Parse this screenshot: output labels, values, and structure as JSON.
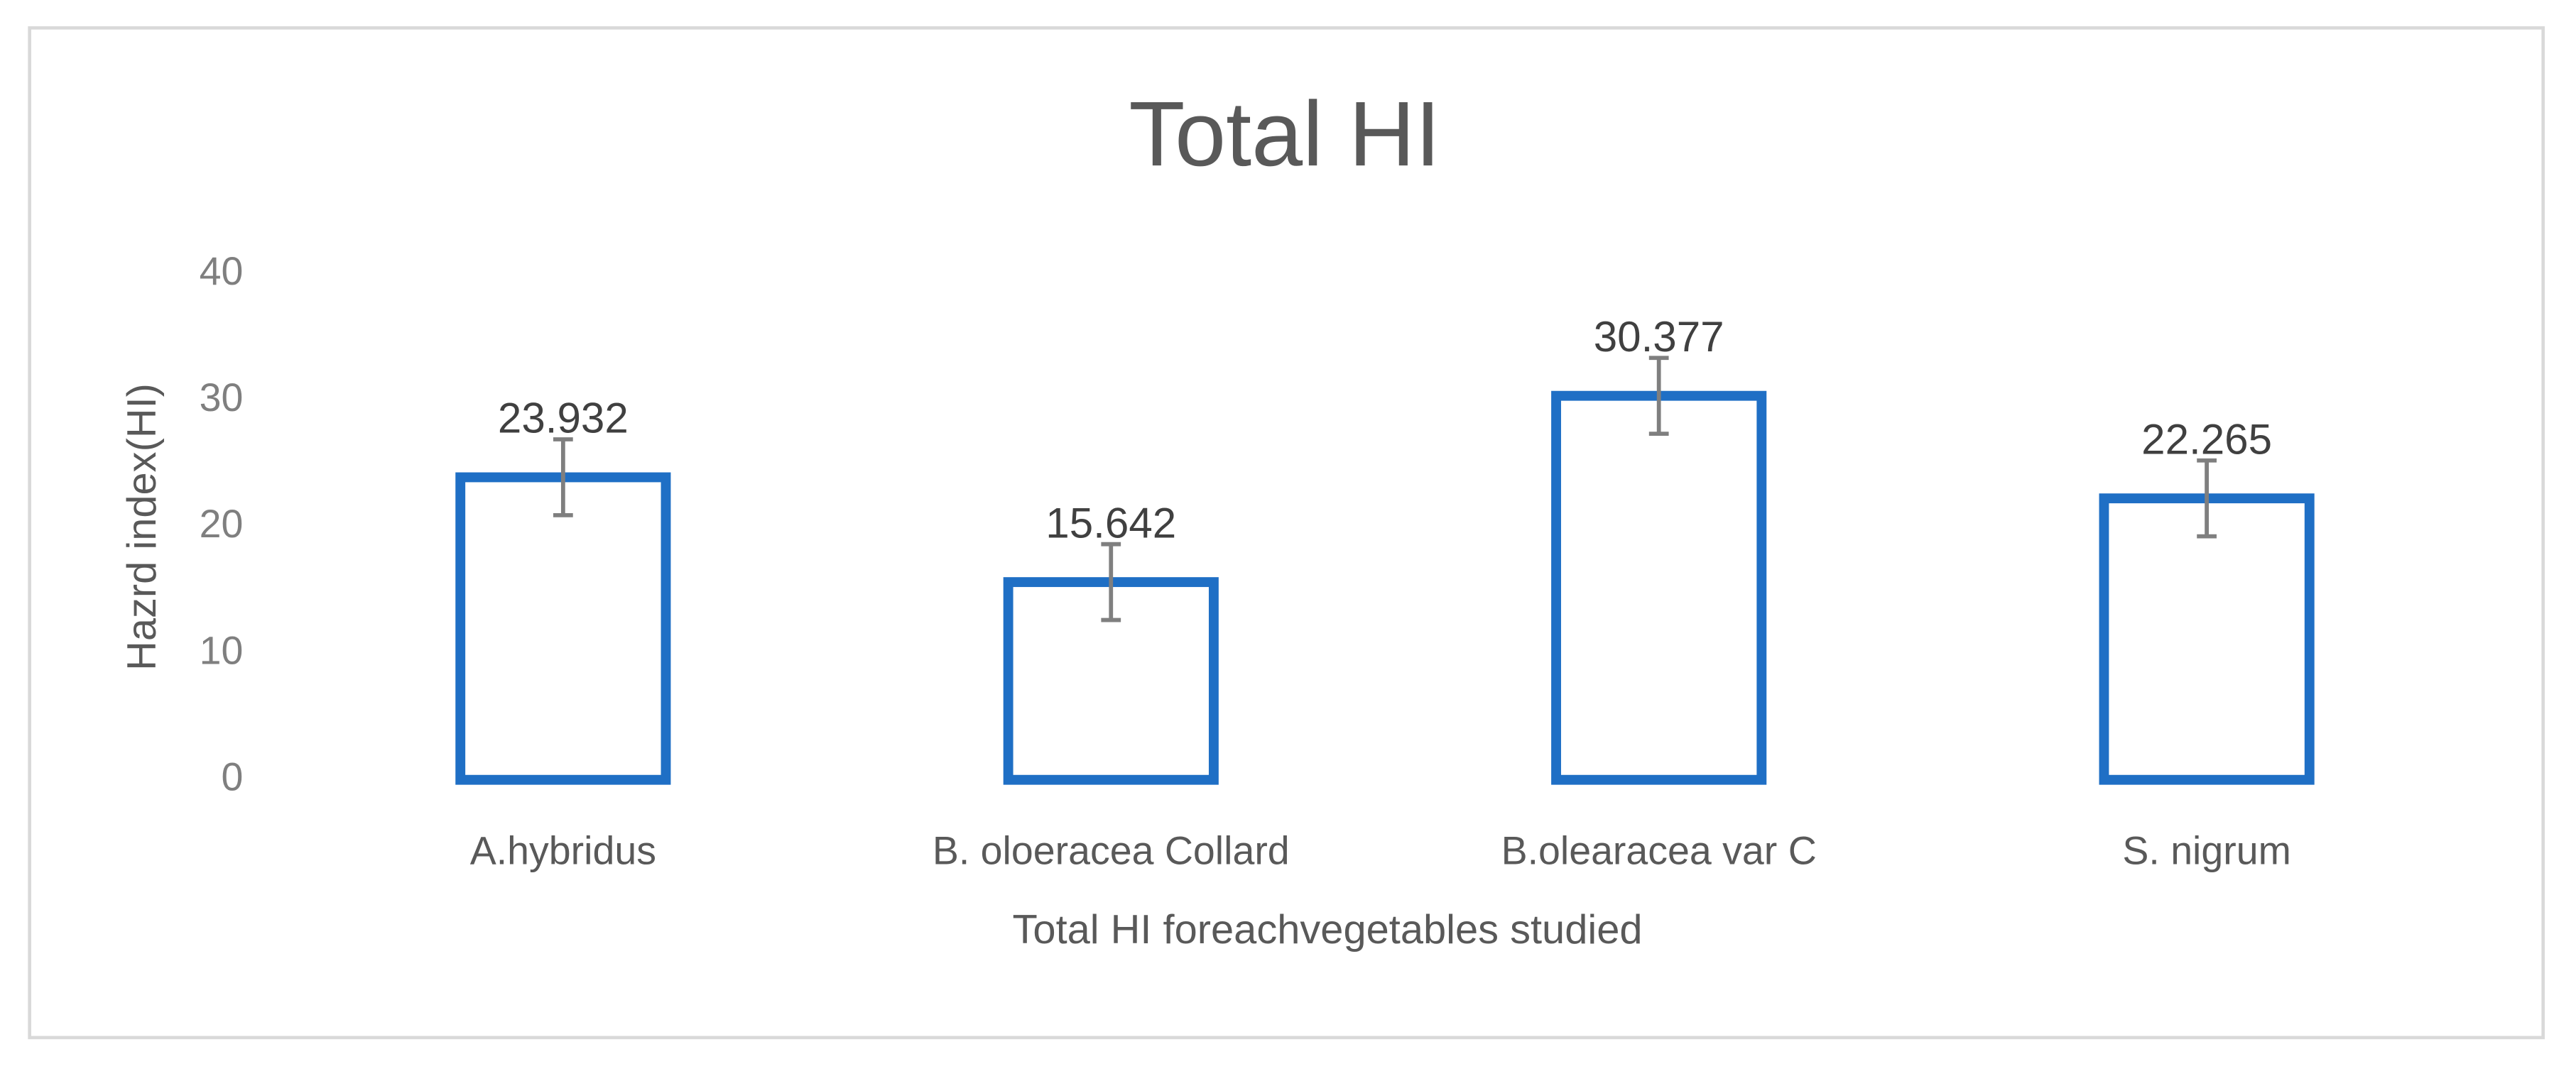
{
  "chart_data": {
    "type": "bar",
    "title": "Total HI",
    "x_label": "Total HI foreachvegetables studied",
    "y_label": "Hazrd index(HI)",
    "categories": [
      "A.hybridus",
      "B. oloeracea Collard",
      "B.olearacea var C",
      "S. nigrum"
    ],
    "values": [
      23.932,
      15.642,
      30.377,
      22.265
    ],
    "errors": [
      3,
      3,
      3,
      3
    ],
    "color": "#1f6fc5",
    "error_color": "#7f7f7f",
    "ylim": [
      0,
      40
    ],
    "yticks": [
      0,
      10,
      20,
      30,
      40
    ],
    "grid": false
  }
}
